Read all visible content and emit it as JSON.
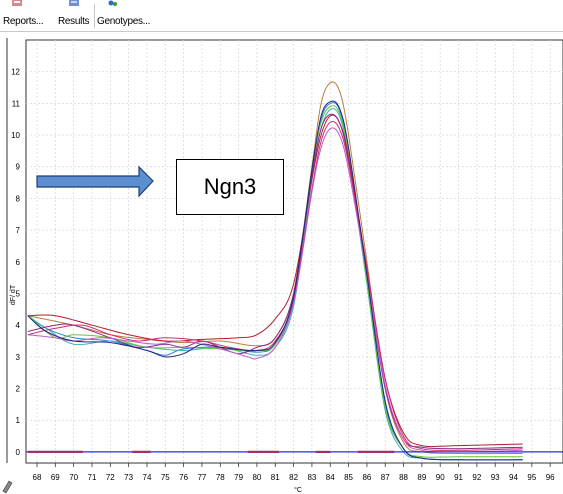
{
  "toolbar": {
    "items": [
      {
        "label": "Reports...",
        "icon": "reports-icon"
      },
      {
        "label": "Results",
        "icon": "results-icon"
      },
      {
        "label": "Genotypes...",
        "icon": "genotypes-icon"
      }
    ]
  },
  "annotation": {
    "text": "Ngn3"
  },
  "chart_data": {
    "type": "line",
    "xlabel": "°C",
    "ylabel": "dF/ dT",
    "x_ticks": [
      68,
      69,
      70,
      71,
      72,
      73,
      74,
      75,
      76,
      77,
      78,
      79,
      80,
      81,
      82,
      83,
      84,
      85,
      86,
      87,
      88,
      89,
      90,
      91,
      92,
      93,
      94,
      95,
      96
    ],
    "y_ticks": [
      0,
      1,
      2,
      3,
      4,
      5,
      6,
      7,
      8,
      9,
      10,
      11,
      12
    ],
    "xlim": [
      67.4,
      96.7
    ],
    "ylim": [
      -0.35,
      13.0
    ],
    "grid": true,
    "colors": {
      "threshold": "#2a2af0",
      "arrow_fill": "#5b8fd0",
      "arrow_stroke": "#1f3f7a"
    },
    "threshold_y": 0.0,
    "series": [
      {
        "color": "#c07c3a",
        "points": [
          [
            67.5,
            4.3
          ],
          [
            70,
            4.0
          ],
          [
            72,
            3.7
          ],
          [
            74,
            3.55
          ],
          [
            76,
            3.45
          ],
          [
            78,
            3.5
          ],
          [
            80,
            3.35
          ],
          [
            81,
            3.6
          ],
          [
            82,
            5.0
          ],
          [
            83,
            9.0
          ],
          [
            83.5,
            11.0
          ],
          [
            84,
            11.65
          ],
          [
            84.5,
            11.4
          ],
          [
            85,
            10.0
          ],
          [
            86,
            6.0
          ],
          [
            87,
            2.0
          ],
          [
            88,
            0.3
          ],
          [
            89,
            0.0
          ],
          [
            91,
            -0.05
          ],
          [
            94.5,
            -0.05
          ]
        ]
      },
      {
        "color": "#2f7fd8",
        "points": [
          [
            67.5,
            4.3
          ],
          [
            68.5,
            3.9
          ],
          [
            70,
            3.6
          ],
          [
            72,
            3.5
          ],
          [
            74,
            3.2
          ],
          [
            75,
            3.05
          ],
          [
            76,
            3.25
          ],
          [
            78,
            3.3
          ],
          [
            80,
            3.15
          ],
          [
            81,
            3.4
          ],
          [
            82,
            4.8
          ],
          [
            83,
            8.8
          ],
          [
            83.5,
            10.5
          ],
          [
            84,
            11.0
          ],
          [
            84.5,
            10.8
          ],
          [
            85,
            9.5
          ],
          [
            86,
            5.5
          ],
          [
            87,
            1.5
          ],
          [
            88,
            0.1
          ],
          [
            89,
            -0.2
          ],
          [
            91,
            -0.25
          ],
          [
            94.5,
            -0.25
          ]
        ]
      },
      {
        "color": "#3cb4b4",
        "points": [
          [
            67.5,
            4.3
          ],
          [
            68.5,
            3.9
          ],
          [
            70,
            3.4
          ],
          [
            72,
            3.5
          ],
          [
            74,
            3.3
          ],
          [
            76,
            3.2
          ],
          [
            78,
            3.3
          ],
          [
            80,
            3.05
          ],
          [
            81,
            3.3
          ],
          [
            82,
            4.6
          ],
          [
            83,
            8.6
          ],
          [
            83.5,
            10.2
          ],
          [
            84,
            10.8
          ],
          [
            84.5,
            10.6
          ],
          [
            85,
            9.3
          ],
          [
            86,
            5.3
          ],
          [
            87,
            1.3
          ],
          [
            88,
            0.0
          ],
          [
            89,
            -0.2
          ],
          [
            91,
            -0.25
          ],
          [
            94.5,
            -0.25
          ]
        ]
      },
      {
        "color": "#6cbf3a",
        "points": [
          [
            67.5,
            4.3
          ],
          [
            69,
            3.6
          ],
          [
            70,
            3.7
          ],
          [
            72,
            3.6
          ],
          [
            74,
            3.3
          ],
          [
            76,
            3.3
          ],
          [
            78,
            3.25
          ],
          [
            80,
            3.2
          ],
          [
            81,
            3.4
          ],
          [
            82,
            4.9
          ],
          [
            83,
            8.9
          ],
          [
            83.5,
            10.4
          ],
          [
            84,
            10.9
          ],
          [
            84.5,
            10.7
          ],
          [
            85,
            9.4
          ],
          [
            86,
            5.4
          ],
          [
            87,
            1.4
          ],
          [
            88,
            0.1
          ],
          [
            89,
            -0.15
          ],
          [
            91,
            -0.15
          ],
          [
            94.5,
            -0.15
          ]
        ]
      },
      {
        "color": "#b01e2e",
        "points": [
          [
            67.5,
            4.3
          ],
          [
            69,
            4.3
          ],
          [
            71,
            4.0
          ],
          [
            73,
            3.7
          ],
          [
            75,
            3.5
          ],
          [
            77,
            3.55
          ],
          [
            79,
            3.6
          ],
          [
            80,
            3.7
          ],
          [
            81,
            4.2
          ],
          [
            82,
            5.3
          ],
          [
            83,
            8.6
          ],
          [
            83.5,
            10.0
          ],
          [
            84,
            10.6
          ],
          [
            84.5,
            10.4
          ],
          [
            85,
            9.3
          ],
          [
            86,
            5.8
          ],
          [
            87,
            2.3
          ],
          [
            88,
            0.6
          ],
          [
            89,
            0.2
          ],
          [
            91,
            0.2
          ],
          [
            94.5,
            0.25
          ]
        ]
      },
      {
        "color": "#8a2a8a",
        "points": [
          [
            67.5,
            3.8
          ],
          [
            69,
            4.0
          ],
          [
            70,
            4.0
          ],
          [
            72,
            3.6
          ],
          [
            73.5,
            3.3
          ],
          [
            75,
            3.4
          ],
          [
            76,
            3.3
          ],
          [
            77,
            3.5
          ],
          [
            78,
            3.3
          ],
          [
            79,
            3.1
          ],
          [
            80,
            3.3
          ],
          [
            81,
            3.6
          ],
          [
            82,
            5.0
          ],
          [
            83,
            8.7
          ],
          [
            83.5,
            10.2
          ],
          [
            84,
            10.65
          ],
          [
            84.5,
            10.4
          ],
          [
            85,
            9.2
          ],
          [
            86,
            5.6
          ],
          [
            87,
            2.0
          ],
          [
            88,
            0.4
          ],
          [
            89,
            0.15
          ],
          [
            91,
            0.1
          ],
          [
            94.5,
            0.15
          ]
        ]
      },
      {
        "color": "#d02a6e",
        "points": [
          [
            67.5,
            3.7
          ],
          [
            69,
            3.9
          ],
          [
            70.5,
            4.0
          ],
          [
            72,
            3.7
          ],
          [
            73.5,
            3.5
          ],
          [
            75,
            3.6
          ],
          [
            77,
            3.5
          ],
          [
            78.5,
            3.3
          ],
          [
            80,
            3.2
          ],
          [
            81,
            3.5
          ],
          [
            82,
            4.8
          ],
          [
            83,
            8.3
          ],
          [
            83.5,
            9.8
          ],
          [
            84,
            10.4
          ],
          [
            84.5,
            10.2
          ],
          [
            85,
            9.1
          ],
          [
            86,
            5.8
          ],
          [
            87,
            2.3
          ],
          [
            88,
            0.5
          ],
          [
            89,
            0.1
          ],
          [
            91,
            0.05
          ],
          [
            94.5,
            0.1
          ]
        ]
      },
      {
        "color": "#c05ad0",
        "points": [
          [
            67.5,
            3.7
          ],
          [
            69,
            3.6
          ],
          [
            70,
            3.5
          ],
          [
            71.5,
            3.6
          ],
          [
            73,
            3.5
          ],
          [
            74.5,
            3.4
          ],
          [
            76,
            3.5
          ],
          [
            78,
            3.25
          ],
          [
            79.5,
            3.0
          ],
          [
            80,
            2.95
          ],
          [
            81,
            3.3
          ],
          [
            82,
            4.7
          ],
          [
            83,
            8.2
          ],
          [
            83.5,
            9.6
          ],
          [
            84,
            10.2
          ],
          [
            84.5,
            10.0
          ],
          [
            85,
            8.9
          ],
          [
            86,
            5.6
          ],
          [
            87,
            2.1
          ],
          [
            88,
            0.4
          ],
          [
            89,
            0.05
          ],
          [
            91,
            0.0
          ],
          [
            94.5,
            0.05
          ]
        ]
      },
      {
        "color": "#1e2a80",
        "points": [
          [
            67.5,
            4.3
          ],
          [
            68.5,
            3.8
          ],
          [
            70,
            3.5
          ],
          [
            72,
            3.45
          ],
          [
            74,
            3.2
          ],
          [
            75,
            3.0
          ],
          [
            76,
            3.1
          ],
          [
            77,
            3.4
          ],
          [
            78,
            3.3
          ],
          [
            80,
            3.2
          ],
          [
            81,
            3.45
          ],
          [
            82,
            4.9
          ],
          [
            83,
            8.9
          ],
          [
            83.5,
            10.6
          ],
          [
            84,
            11.05
          ],
          [
            84.5,
            10.85
          ],
          [
            85,
            9.6
          ],
          [
            86,
            5.6
          ],
          [
            87,
            1.6
          ],
          [
            88,
            0.1
          ],
          [
            89,
            -0.2
          ],
          [
            91,
            -0.25
          ],
          [
            94.5,
            -0.25
          ]
        ]
      }
    ]
  }
}
